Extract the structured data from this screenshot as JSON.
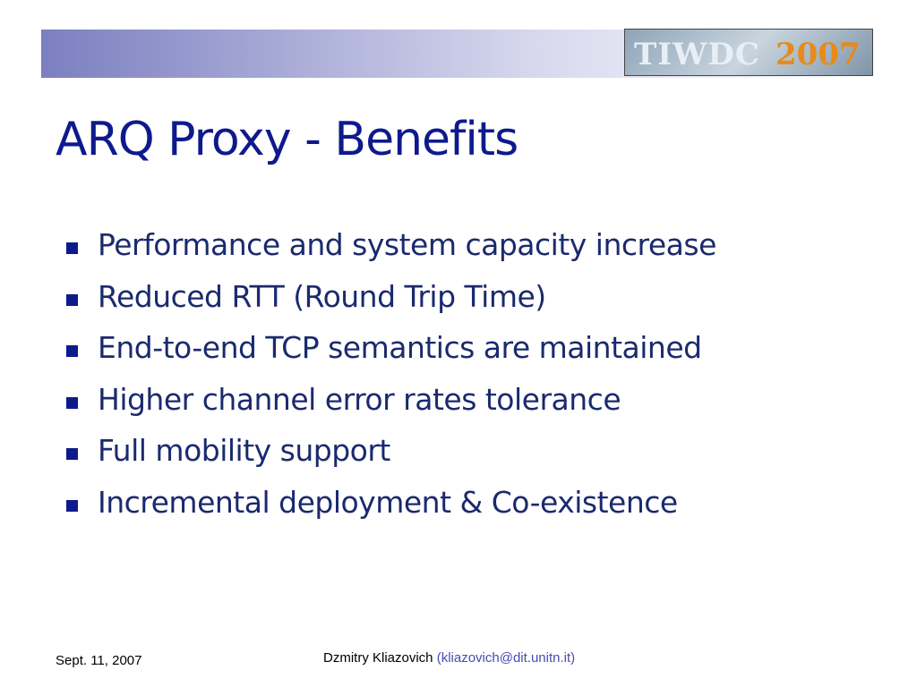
{
  "header": {
    "logo": {
      "text": "TIWDC",
      "year": "2007"
    }
  },
  "title": "ARQ Proxy - Benefits",
  "bullets": [
    "Performance and system capacity increase",
    "Reduced RTT (Round Trip Time)",
    "End-to-end TCP semantics are maintained",
    "Higher channel error rates tolerance",
    "Full mobility support",
    "Incremental deployment & Co-existence"
  ],
  "footer": {
    "date": "Sept. 11, 2007",
    "author": "Dzmitry Kliazovich",
    "email": "(kliazovich@dit.unitn.it)"
  }
}
